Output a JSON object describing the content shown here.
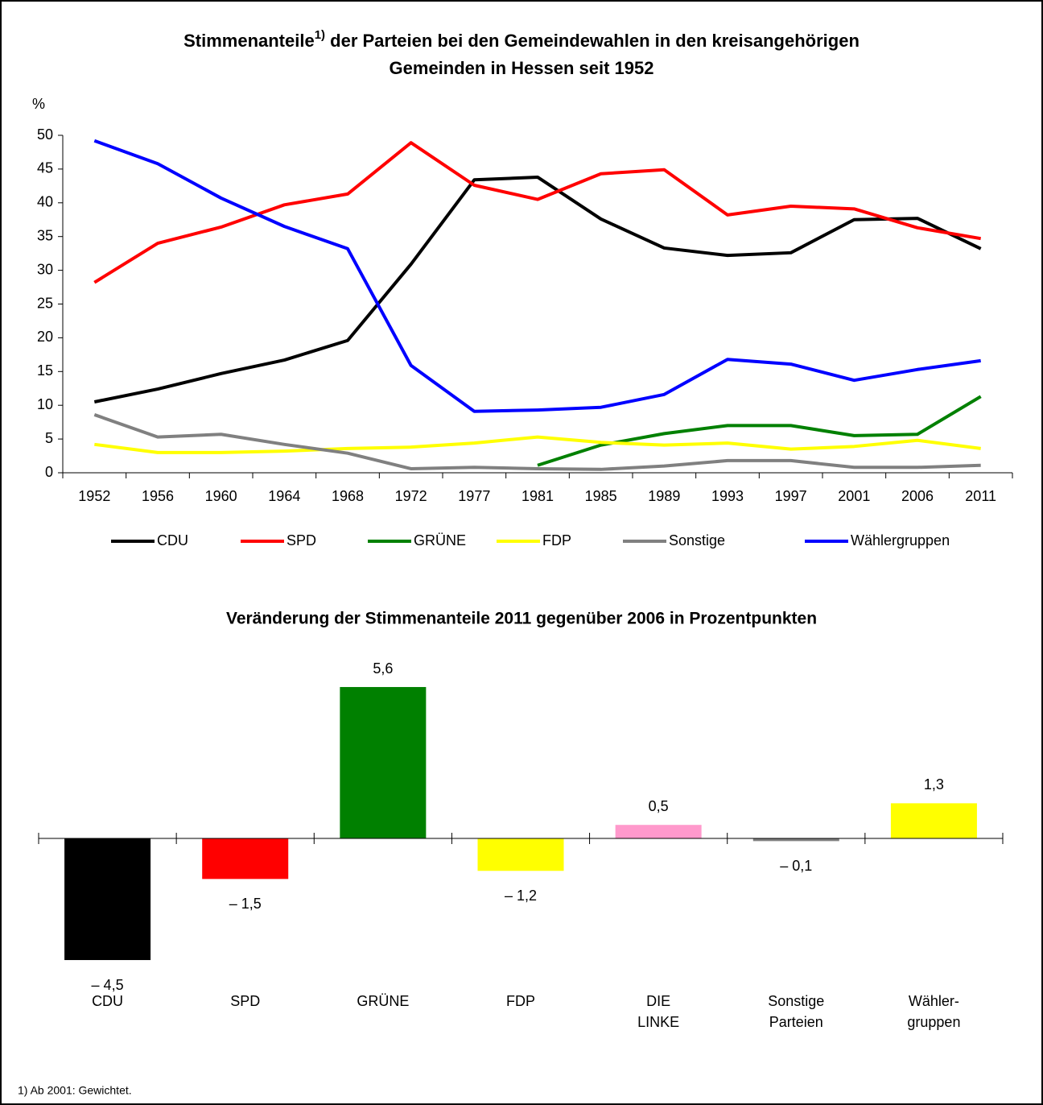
{
  "chart_data": [
    {
      "type": "line",
      "title_parts": [
        "Stimmenanteile",
        "1)",
        " der Parteien bei den Gemeindewahlen in den kreisangehörigen",
        "Gemeinden in Hessen seit 1952"
      ],
      "y_label": "%",
      "categories": [
        "1952",
        "1956",
        "1960",
        "1964",
        "1968",
        "1972",
        "1977",
        "1981",
        "1985",
        "1989",
        "1993",
        "1997",
        "2001",
        "2006",
        "2011"
      ],
      "series": [
        {
          "name": "CDU",
          "color": "#000000",
          "values": [
            10.5,
            12.4,
            14.7,
            16.7,
            19.6,
            30.9,
            43.4,
            43.8,
            37.6,
            33.3,
            32.2,
            32.6,
            37.5,
            37.7,
            33.2
          ]
        },
        {
          "name": "SPD",
          "color": "#ff0000",
          "values": [
            28.2,
            34.0,
            36.4,
            39.7,
            41.3,
            48.9,
            42.6,
            40.5,
            44.3,
            44.9,
            38.2,
            39.5,
            39.1,
            36.3,
            34.7
          ]
        },
        {
          "name": "GRÜNE",
          "color": "#008000",
          "values": [
            null,
            null,
            null,
            null,
            null,
            null,
            null,
            1.1,
            4.1,
            5.8,
            7.0,
            7.0,
            5.5,
            5.7,
            11.3
          ]
        },
        {
          "name": "FDP",
          "color": "#ffff00",
          "values": [
            4.2,
            3.0,
            3.0,
            3.2,
            3.6,
            3.8,
            4.4,
            5.3,
            4.5,
            4.1,
            4.4,
            3.5,
            3.9,
            4.8,
            3.6
          ]
        },
        {
          "name": "Sonstige",
          "color": "#808080",
          "values": [
            8.6,
            5.3,
            5.7,
            4.2,
            2.9,
            0.6,
            0.8,
            0.6,
            0.5,
            1.0,
            1.8,
            1.8,
            0.8,
            0.8,
            1.1
          ]
        },
        {
          "name": "Wählergruppen",
          "color": "#0000ff",
          "values": [
            49.2,
            45.8,
            40.7,
            36.5,
            33.2,
            15.9,
            9.1,
            9.3,
            9.7,
            11.6,
            16.8,
            16.1,
            13.7,
            15.3,
            16.6
          ]
        }
      ],
      "ylim": [
        0,
        50
      ],
      "yticks": [
        0,
        5,
        10,
        15,
        20,
        25,
        30,
        35,
        40,
        45,
        50
      ],
      "footnote": "1) Ab 2001: Gewichtet."
    },
    {
      "type": "bar",
      "title": "Veränderung der Stimmenanteile 2011 gegenüber 2006 in Prozentpunkten",
      "categories": [
        [
          "CDU"
        ],
        [
          "SPD"
        ],
        [
          "GRÜNE"
        ],
        [
          "FDP"
        ],
        [
          "DIE",
          "LINKE"
        ],
        [
          "Sonstige",
          "Parteien"
        ],
        [
          "Wähler-",
          "gruppen"
        ]
      ],
      "values": [
        -4.5,
        -1.5,
        5.6,
        -1.2,
        0.5,
        -0.1,
        1.3
      ],
      "value_labels": [
        "– 4,5",
        "– 1,5",
        "5,6",
        "– 1,2",
        "0,5",
        "– 0,1",
        "1,3"
      ],
      "colors": [
        "#000000",
        "#ff0000",
        "#008000",
        "#ffff00",
        "#ff99cc",
        "#808080",
        "#ffff00"
      ]
    }
  ]
}
